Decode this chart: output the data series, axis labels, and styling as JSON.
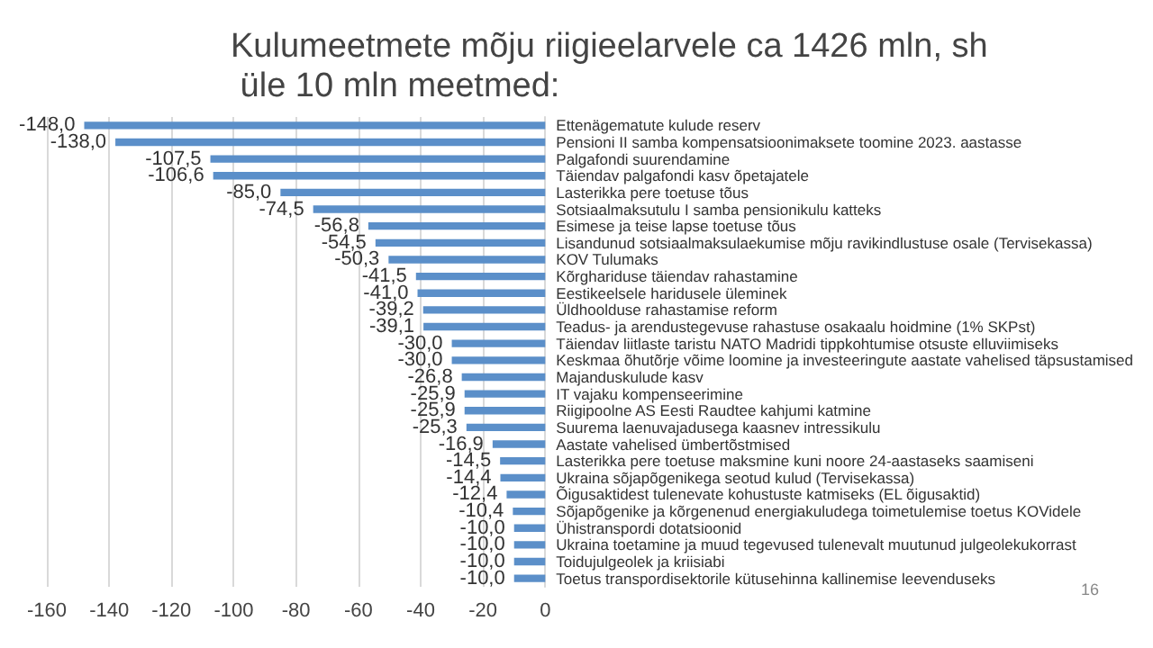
{
  "chart_data": {
    "type": "bar",
    "orientation": "horizontal",
    "title": "Kulumeetmete mõju riigieelarvele ca 1426 mln, sh üle 10 mln meetmed:",
    "categories": [
      "Ettenägematute kulude reserv",
      "Pensioni II samba kompensatsioonimaksete toomine 2023. aastasse",
      "Palgafondi suurendamine",
      "Täiendav palgafondi kasv õpetajatele",
      "Lasterikka pere toetuse tõus",
      "Sotsiaalmaksutulu I samba pensionikulu katteks",
      "Esimese ja teise lapse toetuse tõus",
      "Lisandunud sotsiaalmaksulaekumise mõju ravikindlustuse osale (Tervisekassa)",
      "KOV Tulumaks",
      "Kõrghariduse täiendav rahastamine",
      "Eestikeelsele haridusele üleminek",
      "Üldhoolduse rahastamise reform",
      "Teadus- ja arendustegevuse rahastuse osakaalu hoidmine (1% SKPst)",
      "Täiendav liitlaste taristu NATO Madridi tippkohtumise otsuste elluviimiseks",
      "Keskmaa õhutõrje võime loomine ja investeeringute aastate vahelised täpsustamised",
      "Majanduskulude kasv",
      "IT vajaku kompenseerimine",
      "Riigipoolne AS Eesti Raudtee kahjumi katmine",
      "Suurema laenuvajadusega kaasnev intressikulu",
      "Aastate vahelised ümbertõstmised",
      "Lasterikka pere toetuse maksmine kuni noore 24-aastaseks saamiseni",
      "Ukraina sõjapõgenikega seotud kulud (Tervisekassa)",
      "Õigusaktidest tulenevate kohustuste katmiseks (EL õigusaktid)",
      "Sõjapõgenike ja kõrgenenud energiakuludega toimetulemise toetus KOVidele",
      "Ühistranspordi dotatsioonid",
      "Ukraina toetamine ja muud tegevused tulenevalt muutunud julgeolekukorrast",
      "Toidujulgeolek ja kriisiabi",
      "Toetus transpordisektorile kütusehinna kallinemise leevenduseks"
    ],
    "values": [
      -148.0,
      -138.0,
      -107.5,
      -106.6,
      -85.0,
      -74.5,
      -56.8,
      -54.5,
      -50.3,
      -41.5,
      -41.0,
      -39.2,
      -39.1,
      -30.0,
      -30.0,
      -26.8,
      -25.9,
      -25.9,
      -25.3,
      -16.9,
      -14.5,
      -14.4,
      -12.4,
      -10.4,
      -10.0,
      -10.0,
      -10.0,
      -10.0
    ],
    "value_labels": [
      "-148,0",
      "-138,0",
      "-107,5",
      "-106,6",
      "-85,0",
      "-74,5",
      "-56,8",
      "-54,5",
      "-50,3",
      "-41,5",
      "-41,0",
      "-39,2",
      "-39,1",
      "-30,0",
      "-30,0",
      "-26,8",
      "-25,9",
      "-25,9",
      "-25,3",
      "-16,9",
      "-14,5",
      "-14,4",
      "-12,4",
      "-10,4",
      "-10,0",
      "-10,0",
      "-10,0",
      "-10,0"
    ],
    "color": "#5b8fc9",
    "xlim": [
      -160,
      0
    ],
    "xticks": [
      -160,
      -140,
      -120,
      -100,
      -80,
      -60,
      -40,
      -20,
      0
    ],
    "grid": "x",
    "annotations": [
      "16"
    ]
  }
}
